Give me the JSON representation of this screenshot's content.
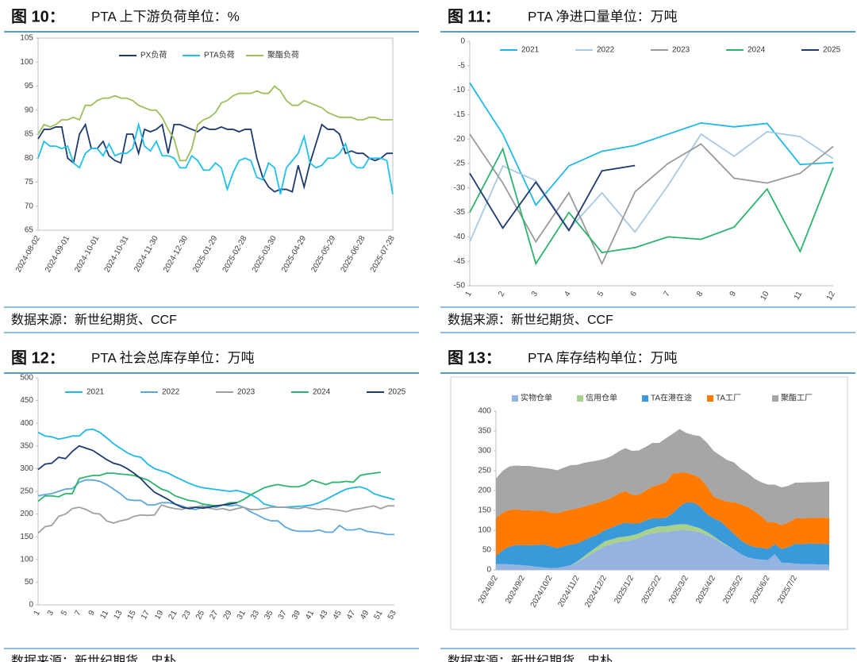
{
  "chart_data": [
    {
      "type": "line",
      "label": "图 10：",
      "title": "PTA 上下游负荷单位：%",
      "source": "数据来源：新世纪期货、CCF",
      "categories": [
        "2024-08-02",
        null,
        null,
        null,
        null,
        "2024-09-01",
        null,
        null,
        null,
        null,
        "2024-10-01",
        null,
        null,
        null,
        null,
        "2024-10-31",
        null,
        null,
        null,
        null,
        "2024-11-30",
        null,
        null,
        null,
        null,
        "2024-12-30",
        null,
        null,
        null,
        null,
        "2025-01-29",
        null,
        null,
        null,
        null,
        "2025-02-28",
        null,
        null,
        null,
        null,
        "2025-03-30",
        null,
        null,
        null,
        null,
        "2025-04-29",
        null,
        null,
        null,
        null,
        "2025-05-29",
        null,
        null,
        null,
        null,
        "2025-06-28",
        null,
        null,
        null,
        null,
        "2025-07-28"
      ],
      "series": [
        {
          "name": "PX负荷",
          "color": "#1f3a6e",
          "values": [
            84,
            86,
            86,
            86.5,
            86.5,
            80,
            79,
            85,
            87,
            82,
            82,
            83.5,
            80.5,
            79.5,
            79,
            85,
            85,
            81,
            86,
            85.5,
            86,
            87,
            81,
            87,
            87,
            86.5,
            86,
            85.5,
            86.5,
            86,
            86,
            86.5,
            86,
            86,
            85.5,
            86,
            86,
            80,
            76,
            74,
            73,
            73.5,
            73.5,
            73,
            78.5,
            74,
            79,
            83,
            87,
            86,
            86,
            85,
            81,
            81.5,
            81,
            81,
            80,
            79.5,
            80,
            81,
            81
          ]
        },
        {
          "name": "PTA负荷",
          "color": "#1fc0f0",
          "values": [
            80,
            83.5,
            82.5,
            82.5,
            82,
            82.5,
            79,
            78,
            81,
            82,
            82,
            80.5,
            83,
            80.5,
            81,
            81,
            82,
            87,
            82.5,
            81.5,
            83.5,
            80.5,
            80.5,
            80,
            78,
            78,
            80.5,
            79.5,
            77.5,
            77.5,
            79,
            78,
            73.5,
            77,
            79.5,
            80,
            79.5,
            76,
            75.5,
            79,
            78,
            72.5,
            78,
            79.5,
            81,
            84.5,
            79,
            78,
            78.5,
            80,
            80,
            81,
            83,
            79,
            78,
            78,
            80,
            80,
            80,
            79.5,
            72.5
          ]
        },
        {
          "name": "聚酯负荷",
          "color": "#9cbf5a",
          "values": [
            85,
            87,
            86.5,
            87,
            88,
            88,
            88.5,
            88,
            91,
            91,
            92,
            92.5,
            92.5,
            93,
            92.5,
            92.5,
            92,
            91,
            90.5,
            90,
            90,
            88.5,
            86,
            84,
            79.5,
            79.5,
            82,
            87,
            88,
            88.5,
            89.5,
            91.5,
            92,
            93,
            93.5,
            93.5,
            93.5,
            94,
            93.5,
            93.5,
            95,
            94,
            92,
            91,
            91,
            92,
            91.5,
            91,
            90.5,
            89.5,
            89,
            88.5,
            88.5,
            88.5,
            88,
            88,
            88.5,
            88.5,
            88,
            88,
            88
          ]
        }
      ],
      "ylim": [
        65,
        105
      ],
      "yticks": [
        65,
        70,
        75,
        80,
        85,
        90,
        95,
        100,
        105
      ],
      "grid": false
    },
    {
      "type": "line",
      "label": "图 11：",
      "title": "PTA 净进口量单位：万吨",
      "source": "数据来源：新世纪期货、CCF",
      "categories": [
        1,
        2,
        3,
        4,
        5,
        6,
        7,
        8,
        9,
        10,
        11,
        12
      ],
      "series": [
        {
          "name": "2021",
          "color": "#1fb8e8",
          "values": [
            -8.5,
            -19,
            -33.5,
            -25.5,
            -22.5,
            -21.3,
            -19,
            -16.7,
            -17.5,
            -16.8,
            -25.2,
            -24.8
          ]
        },
        {
          "name": "2022",
          "color": "#a7c9e6",
          "values": [
            -41,
            -25.5,
            -28.5,
            -38.5,
            -31,
            -39,
            -29.5,
            -19,
            -23.5,
            -18.5,
            -19.5,
            -24
          ]
        },
        {
          "name": "2023",
          "color": "#9a9a9a",
          "values": [
            -19,
            -29,
            -41,
            -31,
            -45.5,
            -30.8,
            -25,
            -21,
            -28,
            -29,
            -27,
            -21.5
          ]
        },
        {
          "name": "2024",
          "color": "#2bb46c",
          "values": [
            -35,
            -22,
            -45.5,
            -35,
            -43.2,
            -42.2,
            -40,
            -40.5,
            -38,
            -30.2,
            -43,
            -25.8
          ]
        },
        {
          "name": "2025",
          "color": "#1f3a6e",
          "values": [
            -27,
            -38.2,
            -28.8,
            -38.7,
            -26.5,
            -25.4,
            null,
            null,
            null,
            null,
            null,
            null
          ]
        }
      ],
      "ylim": [
        -50,
        0
      ],
      "yticks": [
        -50,
        -45,
        -40,
        -35,
        -30,
        -25,
        -20,
        -15,
        -10,
        -5,
        0
      ],
      "grid": false
    },
    {
      "type": "line",
      "label": "图 12：",
      "title": "PTA 社会总库存单位：万吨",
      "source": "数据来源：新世纪期货、忠朴",
      "categories": [
        1,
        null,
        3,
        null,
        5,
        null,
        7,
        null,
        9,
        null,
        11,
        null,
        13,
        null,
        15,
        null,
        17,
        null,
        19,
        null,
        21,
        null,
        23,
        null,
        25,
        null,
        27,
        null,
        29,
        null,
        31,
        null,
        33,
        null,
        35,
        null,
        37,
        null,
        39,
        null,
        41,
        null,
        43,
        null,
        45,
        null,
        47,
        null,
        49,
        null,
        51,
        null,
        53
      ],
      "series": [
        {
          "name": "2021",
          "color": "#1fb8e8",
          "values": [
            380,
            372,
            370,
            365,
            368,
            372,
            372,
            385,
            387,
            380,
            368,
            355,
            345,
            335,
            328,
            325,
            310,
            300,
            295,
            290,
            282,
            275,
            268,
            262,
            258,
            256,
            254,
            252,
            250,
            252,
            248,
            243,
            235,
            222,
            218,
            215,
            215,
            216,
            217,
            218,
            220,
            225,
            232,
            240,
            248,
            255,
            258,
            260,
            255,
            245,
            240,
            236,
            232
          ]
        },
        {
          "name": "2022",
          "color": "#5ca8dc",
          "values": [
            240,
            243,
            245,
            250,
            255,
            256,
            270,
            275,
            275,
            272,
            265,
            255,
            245,
            232,
            230,
            230,
            220,
            220,
            225,
            225,
            222,
            218,
            212,
            210,
            215,
            218,
            215,
            220,
            218,
            220,
            215,
            205,
            198,
            190,
            185,
            185,
            172,
            165,
            162,
            162,
            162,
            165,
            160,
            160,
            175,
            165,
            165,
            168,
            162,
            160,
            158,
            155,
            155
          ]
        },
        {
          "name": "2023",
          "color": "#a0a0a0",
          "values": [
            158,
            172,
            175,
            195,
            200,
            212,
            215,
            210,
            202,
            200,
            185,
            180,
            185,
            188,
            195,
            198,
            197,
            198,
            220,
            215,
            212,
            210,
            215,
            215,
            218,
            213,
            210,
            212,
            208,
            212,
            215,
            210,
            210,
            212,
            215,
            215,
            215,
            213,
            212,
            215,
            212,
            210,
            212,
            210,
            208,
            205,
            210,
            212,
            215,
            218,
            212,
            218,
            218
          ]
        },
        {
          "name": "2024",
          "color": "#2bb46c",
          "values": [
            228,
            240,
            240,
            238,
            245,
            245,
            278,
            282,
            285,
            285,
            290,
            290,
            288,
            287,
            285,
            280,
            275,
            265,
            255,
            250,
            240,
            235,
            230,
            228,
            222,
            220,
            218,
            220,
            225,
            225,
            232,
            242,
            250,
            258,
            262,
            265,
            262,
            260,
            260,
            265,
            275,
            270,
            265,
            270,
            270,
            272,
            270,
            285,
            288,
            290,
            292,
            null,
            null
          ]
        },
        {
          "name": "2025",
          "color": "#1f3a6e",
          "values": [
            298,
            310,
            312,
            325,
            322,
            338,
            350,
            345,
            340,
            330,
            320,
            312,
            308,
            300,
            290,
            278,
            262,
            248,
            240,
            232,
            222,
            215,
            212,
            215,
            213,
            215,
            218,
            220,
            222,
            225,
            null,
            null,
            null,
            null,
            null,
            null,
            null,
            null,
            null,
            null,
            null,
            null,
            null,
            null,
            null,
            null,
            null,
            null,
            null,
            null,
            null,
            null,
            null
          ]
        }
      ],
      "ylim": [
        0,
        500
      ],
      "yticks": [
        0,
        50,
        100,
        150,
        200,
        250,
        300,
        350,
        400,
        450,
        500
      ],
      "grid": false
    },
    {
      "type": "area",
      "stacked": true,
      "label": "图 13：",
      "title": "PTA 库存结构单位：万吨",
      "source": "数据来源：新世纪期货、忠朴",
      "categories": [
        "2024/8/2",
        null,
        null,
        null,
        "2024/9/2",
        null,
        null,
        null,
        "2024/10/2",
        null,
        null,
        null,
        "2024/11/2",
        null,
        null,
        null,
        "2024/12/2",
        null,
        null,
        null,
        "2025/1/2",
        null,
        null,
        null,
        "2025/2/2",
        null,
        null,
        null,
        "2025/3/2",
        null,
        null,
        null,
        "2025/4/2",
        null,
        null,
        null,
        "2025/5/2",
        null,
        null,
        null,
        "2025/6/2",
        null,
        null,
        null,
        "2025/7/2",
        null,
        null,
        null,
        null,
        null
      ],
      "series": [
        {
          "name": "实物仓单",
          "color": "#95b3e0",
          "values": [
            15,
            15,
            14,
            13,
            12,
            10,
            8,
            6,
            5,
            5,
            8,
            12,
            20,
            30,
            40,
            50,
            60,
            65,
            70,
            72,
            75,
            80,
            88,
            92,
            95,
            95,
            98,
            100,
            100,
            98,
            95,
            88,
            80,
            70,
            60,
            50,
            40,
            32,
            28,
            26,
            25,
            40,
            18,
            18,
            16,
            15,
            15,
            14,
            14,
            13
          ]
        },
        {
          "name": "信用仓单",
          "color": "#a9d18e",
          "values": [
            0,
            0,
            0,
            0,
            0,
            0,
            0,
            0,
            0,
            0,
            0,
            0,
            2,
            5,
            8,
            10,
            12,
            12,
            12,
            12,
            12,
            12,
            12,
            13,
            15,
            15,
            15,
            15,
            15,
            12,
            10,
            8,
            5,
            3,
            2,
            1,
            0,
            0,
            0,
            0,
            0,
            0,
            0,
            0,
            0,
            0,
            0,
            0,
            0,
            0
          ]
        },
        {
          "name": "TA在港在途",
          "color": "#3a9ad9",
          "values": [
            20,
            35,
            45,
            50,
            50,
            52,
            55,
            58,
            55,
            50,
            52,
            52,
            45,
            40,
            35,
            30,
            28,
            30,
            32,
            35,
            30,
            25,
            25,
            25,
            20,
            22,
            30,
            45,
            55,
            60,
            55,
            45,
            45,
            50,
            45,
            40,
            35,
            32,
            30,
            30,
            28,
            25,
            35,
            40,
            50,
            50,
            52,
            52,
            52,
            52
          ]
        },
        {
          "name": "TA工厂",
          "color": "#ff7a00",
          "values": [
            95,
            95,
            92,
            90,
            88,
            88,
            86,
            85,
            85,
            88,
            88,
            88,
            88,
            85,
            82,
            80,
            75,
            75,
            78,
            80,
            73,
            72,
            75,
            80,
            85,
            90,
            100,
            85,
            75,
            70,
            72,
            70,
            55,
            55,
            65,
            80,
            90,
            95,
            90,
            80,
            67,
            55,
            60,
            62,
            64,
            65,
            64,
            65,
            66,
            66
          ]
        },
        {
          "name": "聚酯工厂",
          "color": "#a6a6a6",
          "values": [
            100,
            105,
            110,
            110,
            112,
            112,
            110,
            108,
            110,
            108,
            110,
            112,
            110,
            110,
            108,
            106,
            105,
            105,
            106,
            108,
            110,
            112,
            110,
            110,
            105,
            110,
            100,
            110,
            100,
            100,
            105,
            110,
            115,
            110,
            105,
            100,
            90,
            85,
            82,
            85,
            95,
            95,
            95,
            92,
            90,
            90,
            90,
            90,
            90,
            92
          ]
        }
      ],
      "ylim": [
        0,
        400
      ],
      "yticks": [
        0,
        50,
        100,
        150,
        200,
        250,
        300,
        350,
        400
      ],
      "grid": false
    }
  ]
}
